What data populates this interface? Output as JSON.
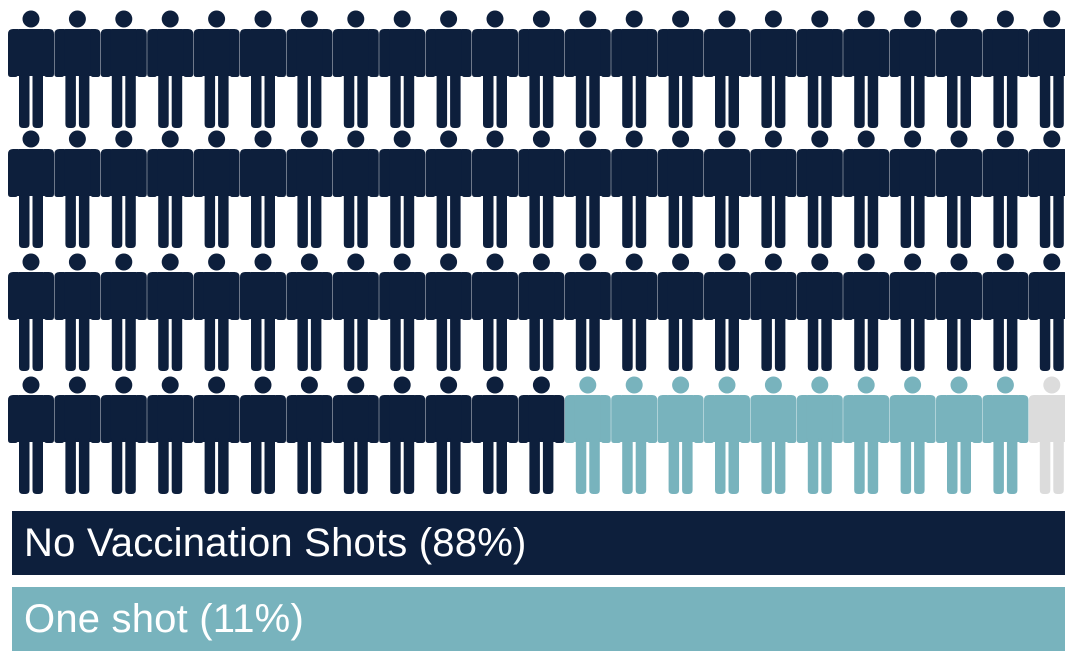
{
  "chart_data": {
    "type": "pictogram",
    "unit_icon": "person-icon",
    "rows": 4,
    "columns": 23,
    "categories": [
      "No Vaccination Shots (88%)",
      "One shot (11%)",
      ""
    ],
    "values": [
      81,
      10,
      1
    ],
    "percentages": [
      88,
      11,
      1
    ],
    "colors": [
      "#0d1f3c",
      "#78b3bd",
      "#dcdcdc"
    ],
    "legend": [
      {
        "label": "No Vaccination Shots (88%)",
        "color": "#0d1f3c"
      },
      {
        "label": "One shot (11%)",
        "color": "#78b3bd"
      }
    ]
  }
}
